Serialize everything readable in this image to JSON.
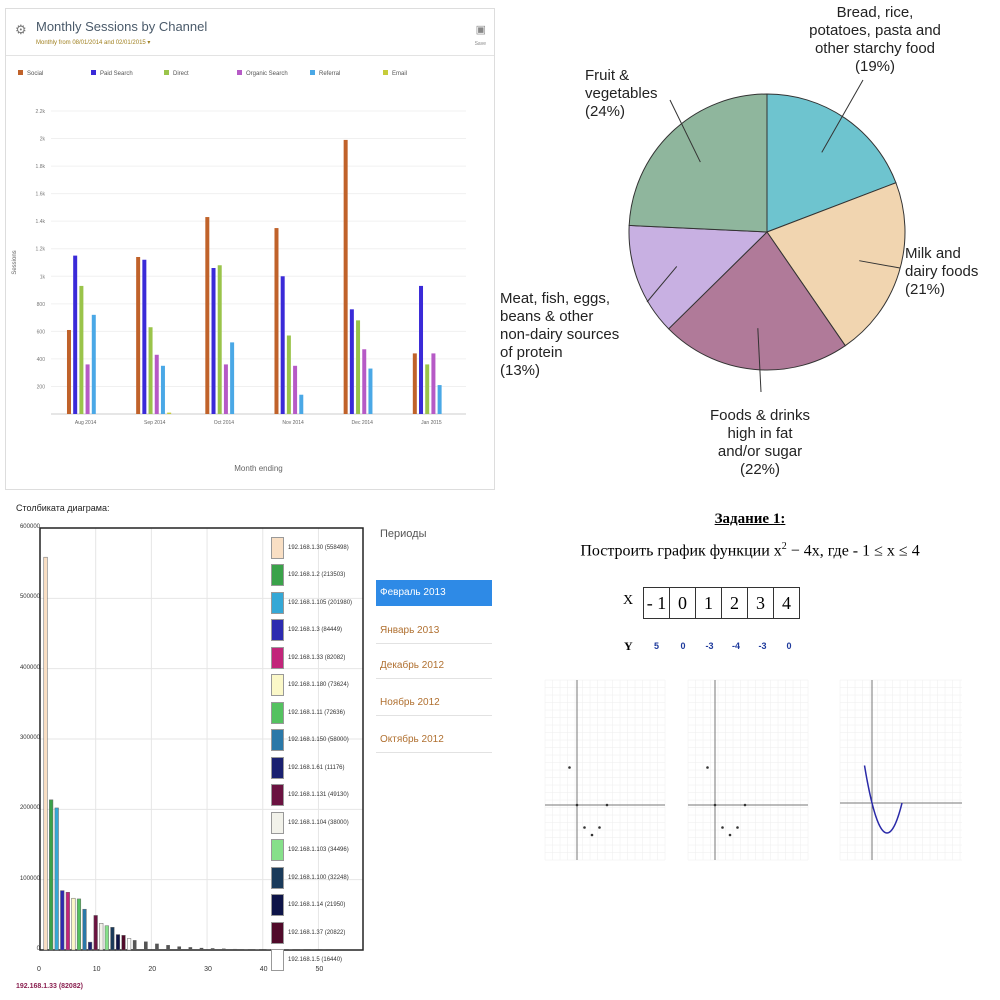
{
  "sessions_panel": {
    "title": "Monthly Sessions by Channel",
    "subtitle": "Monthly from 08/01/2014 and 02/01/2015 ▾",
    "gear_icon": "gear-icon",
    "camera_icon": "camera-icon",
    "camera_label": "Save"
  },
  "pie_panel": {},
  "dist_panel": {
    "caption": "Столбиката диаграма:",
    "footer": "192.168.1.33 (82082)",
    "periods_title": "Периоды",
    "periods": [
      "Февраль 2013",
      "Январь 2013",
      "Декабрь 2012",
      "Ноябрь 2012",
      "Октябрь 2012"
    ],
    "selected_period": 0
  },
  "task": {
    "title": "Задание 1",
    "statement_a": "Построить график функции x",
    "statement_sup": "2",
    "statement_b": " − 4x,  где  - 1 ≤ x ≤ 4",
    "x_label": "X",
    "y_label": "Y",
    "x_values": [
      "- 1",
      "0",
      "1",
      "2",
      "3",
      "4"
    ],
    "y_values": [
      "5",
      "0",
      "-3",
      "-4",
      "-3",
      "0"
    ]
  },
  "chart_data": [
    {
      "type": "bar",
      "title": "Monthly Sessions by Channel",
      "xlabel": "Month ending",
      "ylabel": "Sessions",
      "categories": [
        "Aug 2014",
        "Sep 2014",
        "Oct 2014",
        "Nov 2014",
        "Dec 2014",
        "Jan 2015"
      ],
      "ylim": [
        0,
        2200
      ],
      "yticks": [
        "200",
        "400",
        "600",
        "800",
        "1k",
        "1.2k",
        "1.4k",
        "1.6k",
        "1.8k",
        "2k",
        "2.2k"
      ],
      "legend_position": "top",
      "series": [
        {
          "name": "Social",
          "color": "#c0622a",
          "values": [
            610,
            1140,
            1430,
            1350,
            1990,
            440
          ]
        },
        {
          "name": "Paid Search",
          "color": "#3a2ad8",
          "values": [
            1150,
            1120,
            1060,
            1000,
            760,
            930
          ]
        },
        {
          "name": "Direct",
          "color": "#9ac44a",
          "values": [
            930,
            630,
            1080,
            570,
            680,
            360
          ]
        },
        {
          "name": "Organic Search",
          "color": "#b65ac6",
          "values": [
            360,
            430,
            360,
            350,
            470,
            440
          ]
        },
        {
          "name": "Referral",
          "color": "#4aa8e6",
          "values": [
            720,
            350,
            520,
            140,
            330,
            210
          ]
        },
        {
          "name": "Email",
          "color": "#c6cc3a",
          "values": [
            0,
            10,
            0,
            0,
            0,
            0
          ]
        }
      ]
    },
    {
      "type": "pie",
      "slices": [
        {
          "label": "Bread, rice, potatoes, pasta and other starchy food",
          "value": 19,
          "color": "#6ec4cf"
        },
        {
          "label": "Milk and dairy foods",
          "value": 21,
          "color": "#f1d5b0"
        },
        {
          "label": "Foods & drinks high in fat and/or sugar",
          "value": 22,
          "color": "#b07a99"
        },
        {
          "label": "Meat, fish, eggs, beans & other non-dairy sources of protein",
          "value": 13,
          "color": "#c8b0e2"
        },
        {
          "label": "Fruit & vegetables",
          "value": 24,
          "color": "#8fb69d"
        }
      ],
      "label_text": [
        [
          "Bread, rice,",
          "potatoes, pasta and",
          "other starchy food",
          "(19%)"
        ],
        [
          "Milk and",
          "dairy foods",
          "(21%)"
        ],
        [
          "Foods & drinks",
          "high in fat",
          "and/or sugar",
          "(22%)"
        ],
        [
          "Meat, fish, eggs,",
          "beans & other",
          "non-dairy sources",
          "of protein",
          "(13%)"
        ],
        [
          "Fruit &",
          "vegetables",
          "(24%)"
        ]
      ]
    },
    {
      "type": "bar",
      "title": "Столбиката диаграма:",
      "ylim": [
        0,
        600000
      ],
      "yticks": [
        0,
        100000,
        200000,
        300000,
        400000,
        500000,
        600000
      ],
      "xlim": [
        0,
        58
      ],
      "xticks": [
        0,
        10,
        20,
        30,
        40,
        50
      ],
      "grid": true,
      "legend_position": "right",
      "series": [
        {
          "name": "192.168.1.30 (558498)",
          "color": "#f9dfc4",
          "x": 1,
          "value": 558498
        },
        {
          "name": "192.168.1.2 (213503)",
          "color": "#3aa24a",
          "x": 2,
          "value": 213503
        },
        {
          "name": "192.168.1.105 (201980)",
          "color": "#35a8d6",
          "x": 3,
          "value": 201980
        },
        {
          "name": "192.168.1.3 (84449)",
          "color": "#2c2ab0",
          "x": 4,
          "value": 84449
        },
        {
          "name": "192.168.1.33 (82082)",
          "color": "#c2257a",
          "x": 5,
          "value": 82082
        },
        {
          "name": "192.168.1.180 (73624)",
          "color": "#fbf8c8",
          "x": 6,
          "value": 73624
        },
        {
          "name": "192.168.1.11 (72636)",
          "color": "#54c260",
          "x": 7,
          "value": 72636
        },
        {
          "name": "192.168.1.150 (58000)",
          "color": "#2a78a8",
          "x": 8,
          "value": 58000
        },
        {
          "name": "192.168.1.61 (11176)",
          "color": "#1a2070",
          "x": 9,
          "value": 11176
        },
        {
          "name": "192.168.1.131 (49130)",
          "color": "#6a1240",
          "x": 10,
          "value": 49130
        },
        {
          "name": "192.168.1.104 (38000)",
          "color": "#f2f2ea",
          "x": 11,
          "value": 38000
        },
        {
          "name": "192.168.1.103 (34496)",
          "color": "#86e08a",
          "x": 12,
          "value": 34496
        },
        {
          "name": "192.168.1.100 (32248)",
          "color": "#1a3a5a",
          "x": 13,
          "value": 32248
        },
        {
          "name": "192.168.1.14 (21950)",
          "color": "#0e1448",
          "x": 14,
          "value": 21950
        },
        {
          "name": "192.168.1.37 (20822)",
          "color": "#500a2a",
          "x": 15,
          "value": 20822
        },
        {
          "name": "192.168.1.5 (16440)",
          "color": "#ffffff",
          "x": 16,
          "value": 16440
        }
      ],
      "tail_values": [
        14000,
        12000,
        9000,
        7000,
        5000,
        4000,
        3000,
        2500,
        2000,
        1500,
        1000,
        800,
        600,
        500,
        400,
        300,
        200,
        150,
        100
      ]
    },
    {
      "type": "scatter",
      "x": [
        -1,
        0,
        1,
        2,
        3,
        4
      ],
      "y": [
        5,
        0,
        -3,
        -4,
        -3,
        0
      ]
    },
    {
      "type": "scatter",
      "x": [
        -1,
        0,
        1,
        2,
        3,
        4
      ],
      "y": [
        5,
        0,
        -3,
        -4,
        -3,
        0
      ]
    },
    {
      "type": "line",
      "x": [
        -1,
        0,
        1,
        2,
        3,
        4
      ],
      "y": [
        5,
        0,
        -3,
        -4,
        -3,
        0
      ]
    }
  ]
}
